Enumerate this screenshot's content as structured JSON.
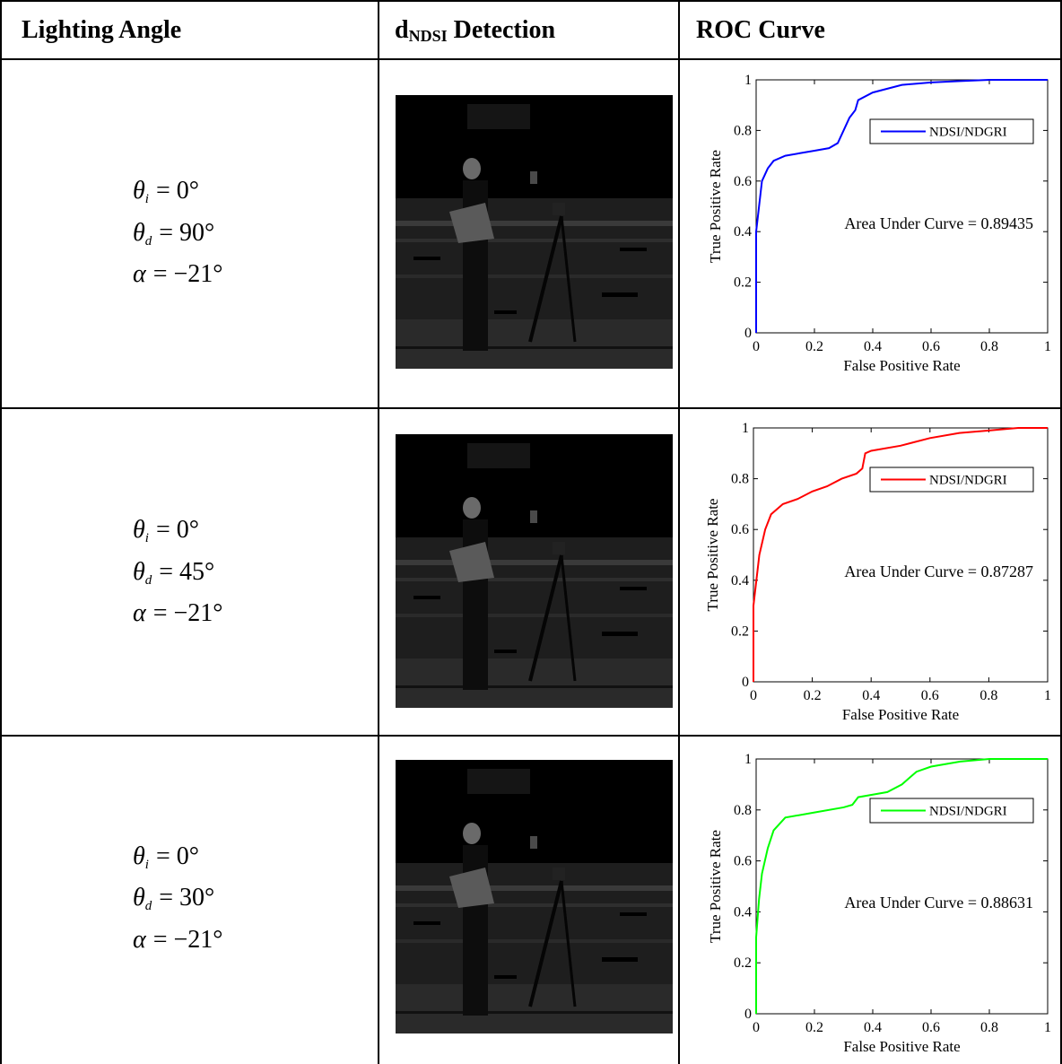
{
  "table": {
    "header": [
      {
        "text": "Lighting Angle"
      },
      {
        "text": "d",
        "sub": "NDSI",
        "rest": "Detection"
      },
      {
        "text": "ROC Curve"
      }
    ],
    "rows": [
      {
        "angles": [
          {
            "symbol": "θ",
            "sub": "i",
            "rhs": "= 0°"
          },
          {
            "symbol": "θ",
            "sub": "d",
            "rhs": "= 90°"
          },
          {
            "symbol": "α",
            "rhs": "= −21°"
          }
        ]
      },
      {
        "angles": [
          {
            "symbol": "θ",
            "sub": "i",
            "rhs": "= 0°"
          },
          {
            "symbol": "θ",
            "sub": "d",
            "rhs": "= 45°"
          },
          {
            "symbol": "α",
            "rhs": "= −21°"
          }
        ]
      },
      {
        "angles": [
          {
            "symbol": "θ",
            "sub": "i",
            "rhs": "= 0°"
          },
          {
            "symbol": "θ",
            "sub": "d",
            "rhs": "= 30°"
          },
          {
            "symbol": "α",
            "rhs": "= −21°"
          }
        ]
      }
    ]
  },
  "chart_data": [
    {
      "type": "line",
      "xlabel": "False Positive Rate",
      "ylabel": "True Positive Rate",
      "annotation": "Area Under Curve = 0.89435",
      "xlim": [
        0,
        1
      ],
      "ylim": [
        0,
        1
      ],
      "xticks": [
        0,
        0.2,
        0.4,
        0.6,
        0.8,
        1
      ],
      "yticks": [
        0,
        0.2,
        0.4,
        0.6,
        0.8,
        1
      ],
      "legend": "upper right",
      "series": [
        {
          "name": "NDSI/NDGRI",
          "color": "#0000ff",
          "x": [
            0,
            0,
            0.005,
            0.01,
            0.02,
            0.04,
            0.06,
            0.1,
            0.15,
            0.2,
            0.25,
            0.28,
            0.3,
            0.32,
            0.34,
            0.35,
            0.4,
            0.5,
            0.6,
            0.7,
            0.8,
            1
          ],
          "values": [
            0,
            0.4,
            0.45,
            0.5,
            0.6,
            0.65,
            0.68,
            0.7,
            0.71,
            0.72,
            0.73,
            0.75,
            0.8,
            0.85,
            0.88,
            0.92,
            0.95,
            0.98,
            0.99,
            0.995,
            1,
            1
          ]
        }
      ]
    },
    {
      "type": "line",
      "xlabel": "False Positive Rate",
      "ylabel": "True Positive Rate",
      "annotation": "Area Under Curve = 0.87287",
      "xlim": [
        0,
        1
      ],
      "ylim": [
        0,
        1
      ],
      "xticks": [
        0,
        0.2,
        0.4,
        0.6,
        0.8,
        1
      ],
      "yticks": [
        0,
        0.2,
        0.4,
        0.6,
        0.8,
        1
      ],
      "legend": "upper right",
      "series": [
        {
          "name": "NDSI/NDGRI",
          "color": "#ff0000",
          "x": [
            0,
            0,
            0.01,
            0.02,
            0.04,
            0.06,
            0.1,
            0.15,
            0.2,
            0.25,
            0.3,
            0.35,
            0.37,
            0.38,
            0.4,
            0.5,
            0.6,
            0.7,
            0.8,
            0.9,
            1
          ],
          "values": [
            0,
            0.3,
            0.4,
            0.5,
            0.6,
            0.66,
            0.7,
            0.72,
            0.75,
            0.77,
            0.8,
            0.82,
            0.84,
            0.9,
            0.91,
            0.93,
            0.96,
            0.98,
            0.99,
            1,
            1
          ]
        }
      ]
    },
    {
      "type": "line",
      "xlabel": "False Positive Rate",
      "ylabel": "True Positive Rate",
      "annotation": "Area Under Curve = 0.88631",
      "xlim": [
        0,
        1
      ],
      "ylim": [
        0,
        1
      ],
      "xticks": [
        0,
        0.2,
        0.4,
        0.6,
        0.8,
        1
      ],
      "yticks": [
        0,
        0.2,
        0.4,
        0.6,
        0.8,
        1
      ],
      "legend": "upper right",
      "series": [
        {
          "name": "NDSI/NDGRI",
          "color": "#00ff00",
          "x": [
            0,
            0,
            0.01,
            0.02,
            0.04,
            0.06,
            0.1,
            0.2,
            0.3,
            0.33,
            0.35,
            0.4,
            0.45,
            0.5,
            0.55,
            0.6,
            0.7,
            0.8,
            1
          ],
          "values": [
            0,
            0.3,
            0.45,
            0.55,
            0.65,
            0.72,
            0.77,
            0.79,
            0.81,
            0.82,
            0.85,
            0.86,
            0.87,
            0.9,
            0.95,
            0.97,
            0.99,
            1,
            1
          ]
        }
      ]
    }
  ]
}
